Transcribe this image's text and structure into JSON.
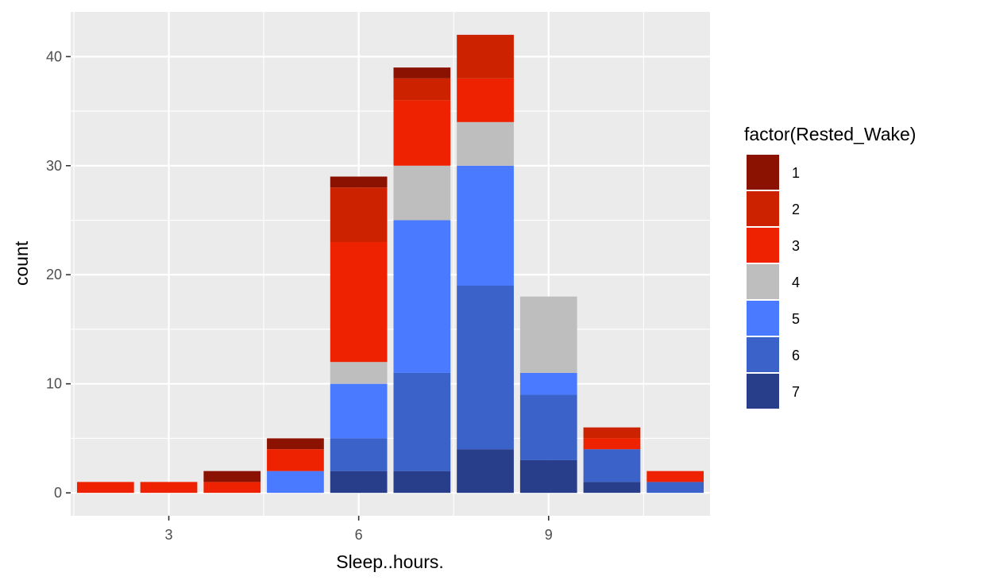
{
  "chart_data": {
    "type": "bar",
    "stacked": true,
    "title": "",
    "xlabel": "Sleep..hours.",
    "ylabel": "count",
    "x": [
      2,
      3,
      4,
      5,
      6,
      7,
      8,
      9,
      10,
      11
    ],
    "xticks": [
      3,
      6,
      9
    ],
    "xlim": [
      1.45,
      11.55
    ],
    "yticks": [
      0,
      10,
      20,
      30,
      40
    ],
    "ylim": [
      -2.1,
      44.1
    ],
    "grid": true,
    "legend": {
      "title": "factor(Rested_Wake)",
      "position": "right"
    },
    "series": [
      {
        "name": "7",
        "color": "#283E8B",
        "values": [
          0,
          0,
          0,
          0,
          2,
          2,
          4,
          3,
          1,
          0
        ]
      },
      {
        "name": "6",
        "color": "#3A62C9",
        "values": [
          0,
          0,
          0,
          0,
          3,
          9,
          15,
          6,
          3,
          1
        ]
      },
      {
        "name": "5",
        "color": "#4A7AFF",
        "values": [
          0,
          0,
          0,
          2,
          5,
          14,
          11,
          2,
          0,
          0
        ]
      },
      {
        "name": "4",
        "color": "#BEBEBE",
        "values": [
          0,
          0,
          0,
          0,
          2,
          5,
          4,
          7,
          0,
          0
        ]
      },
      {
        "name": "3",
        "color": "#EE2200",
        "values": [
          1,
          1,
          1,
          2,
          11,
          6,
          4,
          0,
          1,
          1
        ]
      },
      {
        "name": "2",
        "color": "#CC2200",
        "values": [
          0,
          0,
          0,
          0,
          5,
          2,
          4,
          0,
          1,
          0
        ]
      },
      {
        "name": "1",
        "color": "#8B1100",
        "values": [
          0,
          0,
          1,
          1,
          1,
          1,
          0,
          0,
          0,
          0
        ]
      }
    ],
    "legend_order": [
      "1",
      "2",
      "3",
      "4",
      "5",
      "6",
      "7"
    ]
  }
}
